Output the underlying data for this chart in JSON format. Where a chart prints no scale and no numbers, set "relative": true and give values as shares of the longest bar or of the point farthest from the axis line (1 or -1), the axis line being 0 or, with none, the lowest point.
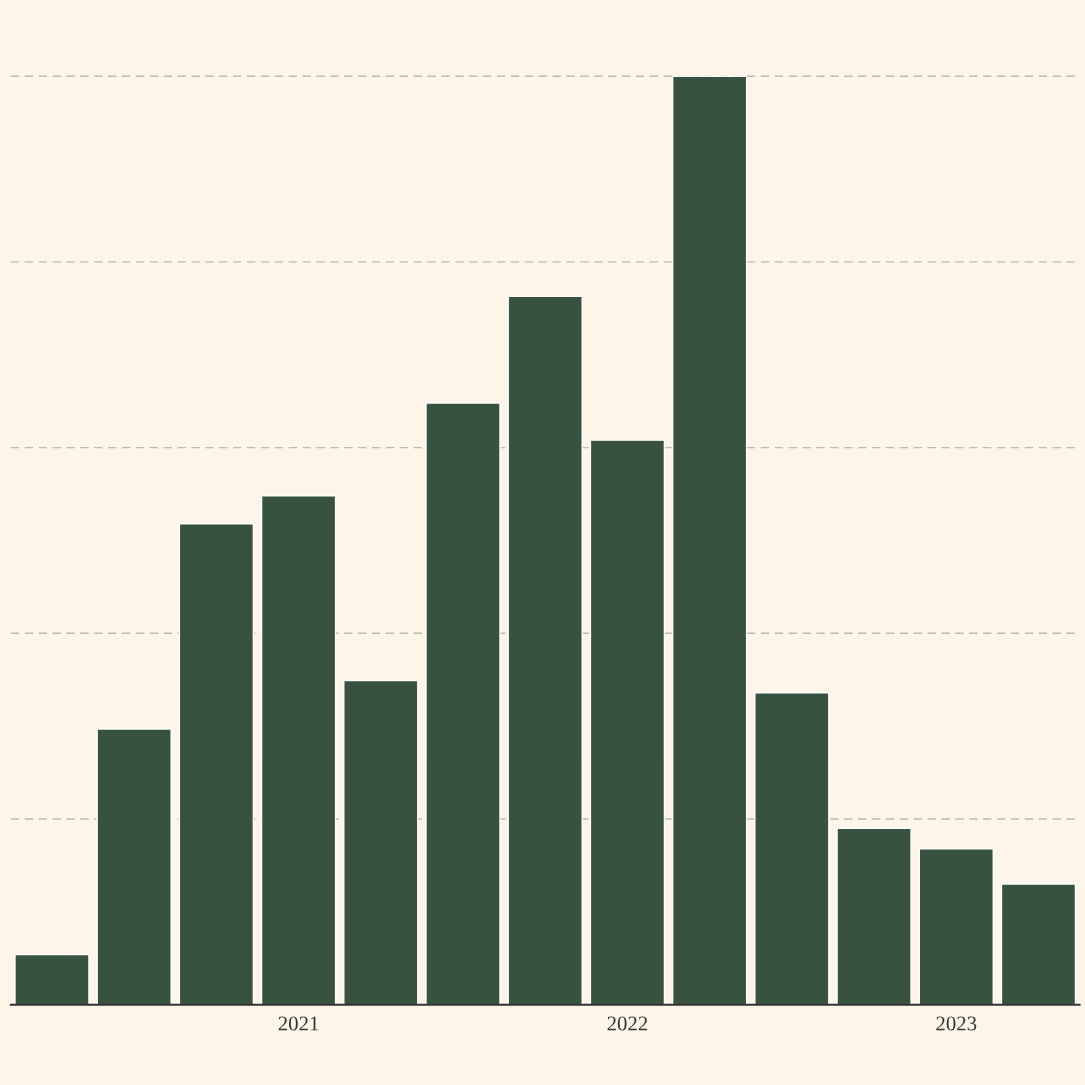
{
  "chart_data": {
    "type": "bar",
    "relative": true,
    "categories": [
      null,
      null,
      null,
      "2021",
      null,
      null,
      null,
      "2022",
      null,
      null,
      null,
      "2023",
      null
    ],
    "values": [
      0.054,
      0.297,
      0.518,
      0.548,
      0.349,
      0.648,
      0.763,
      0.608,
      1.0,
      0.336,
      0.19,
      0.168,
      0.13
    ],
    "color": "#37533f",
    "grid": "y"
  }
}
